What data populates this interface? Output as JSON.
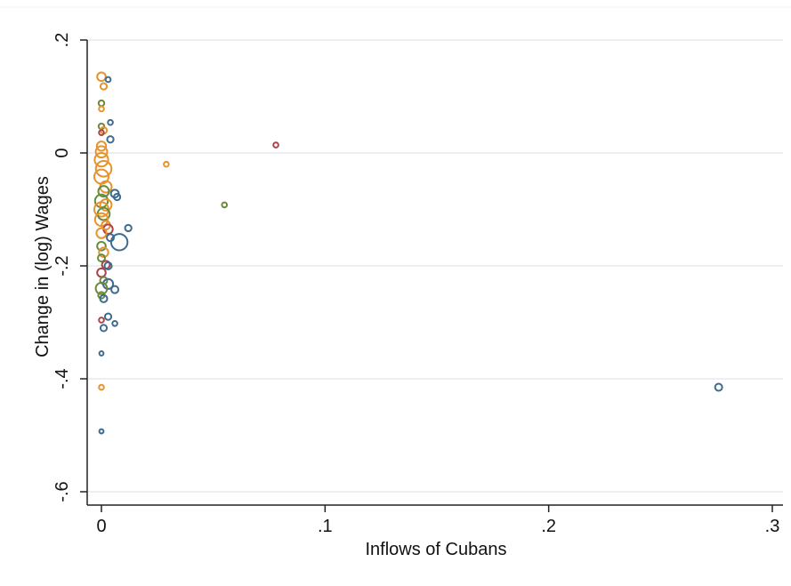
{
  "chart_data": {
    "type": "scatter",
    "title": "",
    "xlabel": "Inflows of Cubans",
    "ylabel": "Change in (log) Wages",
    "xlim": [
      0,
      0.3
    ],
    "ylim": [
      -0.6,
      0.2
    ],
    "x_ticks": [
      {
        "value": 0,
        "label": "0"
      },
      {
        "value": 0.1,
        "label": ".1"
      },
      {
        "value": 0.2,
        "label": ".2"
      },
      {
        "value": 0.3,
        "label": ".3"
      }
    ],
    "y_ticks": [
      {
        "value": -0.6,
        "label": "-.6"
      },
      {
        "value": -0.4,
        "label": "-.4"
      },
      {
        "value": -0.2,
        "label": "-.2"
      },
      {
        "value": 0,
        "label": "0"
      },
      {
        "value": 0.2,
        "label": ".2"
      }
    ],
    "grid": "horizontal",
    "legend": "none",
    "marker": "hollow circle, size proportional to weight",
    "group_colors": {
      "orange": "#e8922b",
      "blue": "#3f6b8e",
      "green": "#6a8a3c",
      "red": "#a8454b"
    },
    "points": [
      {
        "x": 0.0,
        "y": 0.135,
        "size": 1.2,
        "group": "orange"
      },
      {
        "x": 0.003,
        "y": 0.13,
        "size": 0.7,
        "group": "blue"
      },
      {
        "x": 0.001,
        "y": 0.118,
        "size": 0.9,
        "group": "orange"
      },
      {
        "x": 0.0,
        "y": 0.088,
        "size": 0.8,
        "group": "green"
      },
      {
        "x": 0.0,
        "y": 0.078,
        "size": 0.7,
        "group": "orange"
      },
      {
        "x": 0.004,
        "y": 0.054,
        "size": 0.7,
        "group": "blue"
      },
      {
        "x": 0.0,
        "y": 0.047,
        "size": 0.8,
        "group": "green"
      },
      {
        "x": 0.001,
        "y": 0.04,
        "size": 0.9,
        "group": "orange"
      },
      {
        "x": 0.0,
        "y": 0.036,
        "size": 0.7,
        "group": "red"
      },
      {
        "x": 0.004,
        "y": 0.024,
        "size": 0.9,
        "group": "blue"
      },
      {
        "x": 0.0,
        "y": 0.012,
        "size": 1.3,
        "group": "orange"
      },
      {
        "x": 0.0,
        "y": 0.002,
        "size": 1.6,
        "group": "orange"
      },
      {
        "x": 0.0,
        "y": -0.012,
        "size": 1.9,
        "group": "orange"
      },
      {
        "x": 0.001,
        "y": -0.028,
        "size": 2.2,
        "group": "orange"
      },
      {
        "x": 0.0,
        "y": -0.042,
        "size": 2.0,
        "group": "orange"
      },
      {
        "x": 0.002,
        "y": -0.06,
        "size": 1.6,
        "group": "orange"
      },
      {
        "x": 0.001,
        "y": -0.068,
        "size": 1.5,
        "group": "green"
      },
      {
        "x": 0.006,
        "y": -0.072,
        "size": 1.1,
        "group": "blue"
      },
      {
        "x": 0.007,
        "y": -0.078,
        "size": 0.9,
        "group": "blue"
      },
      {
        "x": 0.0,
        "y": -0.085,
        "size": 1.8,
        "group": "green"
      },
      {
        "x": 0.002,
        "y": -0.092,
        "size": 1.6,
        "group": "orange"
      },
      {
        "x": 0.0,
        "y": -0.1,
        "size": 2.0,
        "group": "orange"
      },
      {
        "x": 0.001,
        "y": -0.108,
        "size": 1.7,
        "group": "green"
      },
      {
        "x": 0.0,
        "y": -0.118,
        "size": 1.8,
        "group": "orange"
      },
      {
        "x": 0.002,
        "y": -0.128,
        "size": 1.2,
        "group": "orange"
      },
      {
        "x": 0.003,
        "y": -0.135,
        "size": 1.3,
        "group": "red"
      },
      {
        "x": 0.012,
        "y": -0.133,
        "size": 0.9,
        "group": "blue"
      },
      {
        "x": 0.0,
        "y": -0.142,
        "size": 1.4,
        "group": "orange"
      },
      {
        "x": 0.004,
        "y": -0.15,
        "size": 1.0,
        "group": "blue"
      },
      {
        "x": 0.008,
        "y": -0.158,
        "size": 2.3,
        "group": "blue"
      },
      {
        "x": 0.0,
        "y": -0.165,
        "size": 1.2,
        "group": "green"
      },
      {
        "x": 0.001,
        "y": -0.176,
        "size": 1.3,
        "group": "orange"
      },
      {
        "x": 0.0,
        "y": -0.186,
        "size": 1.0,
        "group": "green"
      },
      {
        "x": 0.002,
        "y": -0.198,
        "size": 1.1,
        "group": "red"
      },
      {
        "x": 0.003,
        "y": -0.2,
        "size": 1.0,
        "group": "blue"
      },
      {
        "x": 0.0,
        "y": -0.212,
        "size": 1.2,
        "group": "red"
      },
      {
        "x": 0.001,
        "y": -0.226,
        "size": 1.0,
        "group": "green"
      },
      {
        "x": 0.003,
        "y": -0.232,
        "size": 1.4,
        "group": "blue"
      },
      {
        "x": 0.0,
        "y": -0.24,
        "size": 1.6,
        "group": "green"
      },
      {
        "x": 0.006,
        "y": -0.242,
        "size": 1.0,
        "group": "blue"
      },
      {
        "x": 0.0,
        "y": -0.252,
        "size": 0.9,
        "group": "green"
      },
      {
        "x": 0.001,
        "y": -0.258,
        "size": 1.0,
        "group": "blue"
      },
      {
        "x": 0.0,
        "y": -0.296,
        "size": 0.7,
        "group": "red"
      },
      {
        "x": 0.003,
        "y": -0.29,
        "size": 0.9,
        "group": "blue"
      },
      {
        "x": 0.006,
        "y": -0.302,
        "size": 0.7,
        "group": "blue"
      },
      {
        "x": 0.001,
        "y": -0.31,
        "size": 0.9,
        "group": "blue"
      },
      {
        "x": 0.0,
        "y": -0.355,
        "size": 0.6,
        "group": "blue"
      },
      {
        "x": 0.0,
        "y": -0.415,
        "size": 0.7,
        "group": "orange"
      },
      {
        "x": 0.0,
        "y": -0.493,
        "size": 0.6,
        "group": "blue"
      },
      {
        "x": 0.029,
        "y": -0.02,
        "size": 0.7,
        "group": "orange"
      },
      {
        "x": 0.078,
        "y": 0.014,
        "size": 0.7,
        "group": "red"
      },
      {
        "x": 0.055,
        "y": -0.092,
        "size": 0.7,
        "group": "green"
      },
      {
        "x": 0.276,
        "y": -0.415,
        "size": 1.0,
        "group": "blue"
      }
    ]
  }
}
